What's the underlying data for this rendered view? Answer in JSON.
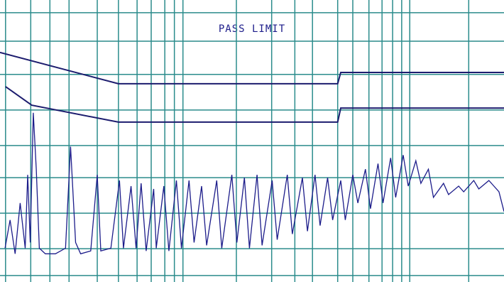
{
  "chart_data": {
    "type": "line",
    "title": "PASS LIMIT",
    "xlim": [
      0,
      100
    ],
    "ylim": [
      0,
      100
    ],
    "xticks": [
      1.1,
      6.1,
      9.9,
      13.7,
      19.3,
      23.5,
      27.2,
      30,
      32.7,
      34.6,
      36.3,
      46.9,
      53.9,
      58.5,
      62,
      67,
      70,
      73.2,
      75.8,
      77.9,
      79.7,
      81.3,
      93
    ],
    "yticks": [
      2.3,
      11.8,
      24.4,
      37,
      48.4,
      61,
      73.6,
      85.4,
      95.5
    ],
    "grid": true,
    "grid_color": "#2b8c8c",
    "series": [
      {
        "color": "#1c1c6e",
        "x": [
          0,
          23.5,
          67,
          67.6,
          100
        ],
        "values": [
          81.4,
          70.3,
          70.3,
          74.3,
          74.3
        ]
      },
      {
        "color": "#1c1c6e",
        "x": [
          1.1,
          6.3,
          23.5,
          67,
          67.6,
          100
        ],
        "values": [
          69.3,
          62.7,
          56.7,
          56.7,
          61.7,
          61.7
        ]
      },
      {
        "color": "#1c1c8a",
        "x": [
          1,
          2,
          3,
          4,
          5,
          5.5,
          6,
          6.6,
          7.2,
          7.8,
          9,
          11,
          13,
          14,
          15,
          16,
          18,
          19.3,
          20,
          22,
          23.7,
          24.5,
          26,
          27,
          28,
          29,
          30.5,
          31,
          32.5,
          33.5,
          35,
          36,
          37.5,
          38.5,
          40,
          41,
          43,
          44,
          46,
          47,
          48.5,
          49.5,
          51,
          52,
          54,
          55,
          57,
          58,
          60,
          61,
          62.5,
          63.5,
          65,
          66,
          67.6,
          68.5,
          70,
          71,
          72.5,
          73.5,
          75,
          76,
          77.5,
          78.5,
          80,
          81,
          82.5,
          83.5,
          85,
          86,
          88,
          89,
          91,
          92,
          94,
          95,
          97,
          98,
          99,
          100
        ],
        "values": [
          12,
          22,
          10,
          28,
          12,
          38,
          14,
          60,
          40,
          12,
          10,
          10,
          12,
          48,
          14,
          10,
          11,
          38,
          11,
          12,
          36,
          12,
          34,
          12,
          35,
          11,
          33,
          12,
          34,
          11,
          36,
          12,
          36,
          14,
          34,
          13,
          36,
          12,
          38,
          14,
          37,
          12,
          38,
          13,
          36,
          15,
          38,
          17,
          37,
          18,
          38,
          20,
          37,
          22,
          36,
          22,
          38,
          28,
          40,
          26,
          42,
          28,
          44,
          30,
          45,
          34,
          43,
          35,
          40,
          30,
          35,
          31,
          34,
          32,
          36,
          33,
          36,
          34,
          32,
          25
        ]
      }
    ]
  }
}
